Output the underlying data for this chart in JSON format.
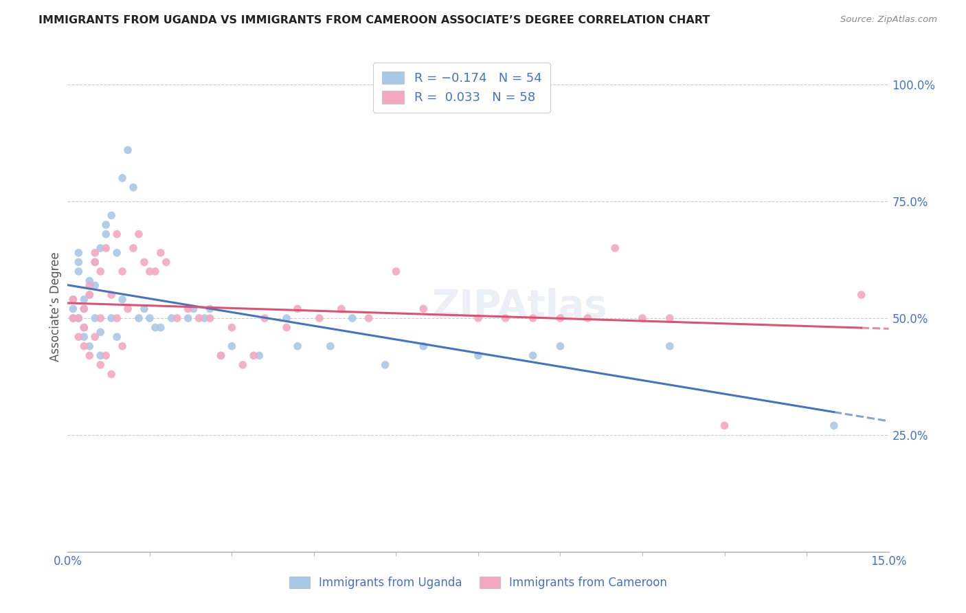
{
  "title": "IMMIGRANTS FROM UGANDA VS IMMIGRANTS FROM CAMEROON ASSOCIATE’S DEGREE CORRELATION CHART",
  "source": "Source: ZipAtlas.com",
  "ylabel": "Associate’s Degree",
  "xlim": [
    0.0,
    0.15
  ],
  "ylim": [
    0.0,
    1.05
  ],
  "color_uganda": "#a8c8e8",
  "color_cameroon": "#f4a8c0",
  "color_uganda_line": "#4472C4",
  "color_cameroon_line": "#E05070",
  "scatter_size": 70,
  "uganda_x": [
    0.001,
    0.001,
    0.001,
    0.002,
    0.002,
    0.002,
    0.002,
    0.003,
    0.003,
    0.003,
    0.003,
    0.004,
    0.004,
    0.004,
    0.005,
    0.005,
    0.005,
    0.006,
    0.006,
    0.006,
    0.007,
    0.007,
    0.008,
    0.008,
    0.009,
    0.009,
    0.01,
    0.01,
    0.011,
    0.012,
    0.013,
    0.014,
    0.015,
    0.016,
    0.017,
    0.019,
    0.022,
    0.023,
    0.025,
    0.026,
    0.028,
    0.03,
    0.035,
    0.04,
    0.042,
    0.048,
    0.052,
    0.058,
    0.065,
    0.075,
    0.085,
    0.09,
    0.11,
    0.14
  ],
  "uganda_y": [
    0.5,
    0.52,
    0.54,
    0.6,
    0.62,
    0.64,
    0.5,
    0.52,
    0.54,
    0.48,
    0.46,
    0.55,
    0.58,
    0.44,
    0.57,
    0.5,
    0.62,
    0.65,
    0.47,
    0.42,
    0.68,
    0.7,
    0.72,
    0.5,
    0.64,
    0.46,
    0.8,
    0.54,
    0.86,
    0.78,
    0.5,
    0.52,
    0.5,
    0.48,
    0.48,
    0.5,
    0.5,
    0.52,
    0.5,
    0.52,
    0.42,
    0.44,
    0.42,
    0.5,
    0.44,
    0.44,
    0.5,
    0.4,
    0.44,
    0.42,
    0.42,
    0.44,
    0.44,
    0.27
  ],
  "cameroon_x": [
    0.001,
    0.001,
    0.002,
    0.002,
    0.003,
    0.003,
    0.003,
    0.004,
    0.004,
    0.004,
    0.005,
    0.005,
    0.005,
    0.006,
    0.006,
    0.006,
    0.007,
    0.007,
    0.008,
    0.008,
    0.009,
    0.009,
    0.01,
    0.01,
    0.011,
    0.012,
    0.013,
    0.014,
    0.015,
    0.016,
    0.017,
    0.018,
    0.02,
    0.022,
    0.024,
    0.026,
    0.028,
    0.03,
    0.032,
    0.034,
    0.036,
    0.04,
    0.042,
    0.046,
    0.05,
    0.055,
    0.06,
    0.065,
    0.075,
    0.08,
    0.085,
    0.09,
    0.095,
    0.1,
    0.105,
    0.11,
    0.12,
    0.145
  ],
  "cameroon_y": [
    0.5,
    0.54,
    0.5,
    0.46,
    0.52,
    0.48,
    0.44,
    0.55,
    0.57,
    0.42,
    0.62,
    0.64,
    0.46,
    0.6,
    0.5,
    0.4,
    0.65,
    0.42,
    0.55,
    0.38,
    0.68,
    0.5,
    0.6,
    0.44,
    0.52,
    0.65,
    0.68,
    0.62,
    0.6,
    0.6,
    0.64,
    0.62,
    0.5,
    0.52,
    0.5,
    0.5,
    0.42,
    0.48,
    0.4,
    0.42,
    0.5,
    0.48,
    0.52,
    0.5,
    0.52,
    0.5,
    0.6,
    0.52,
    0.5,
    0.5,
    0.5,
    0.5,
    0.5,
    0.65,
    0.5,
    0.5,
    0.27,
    0.55
  ]
}
